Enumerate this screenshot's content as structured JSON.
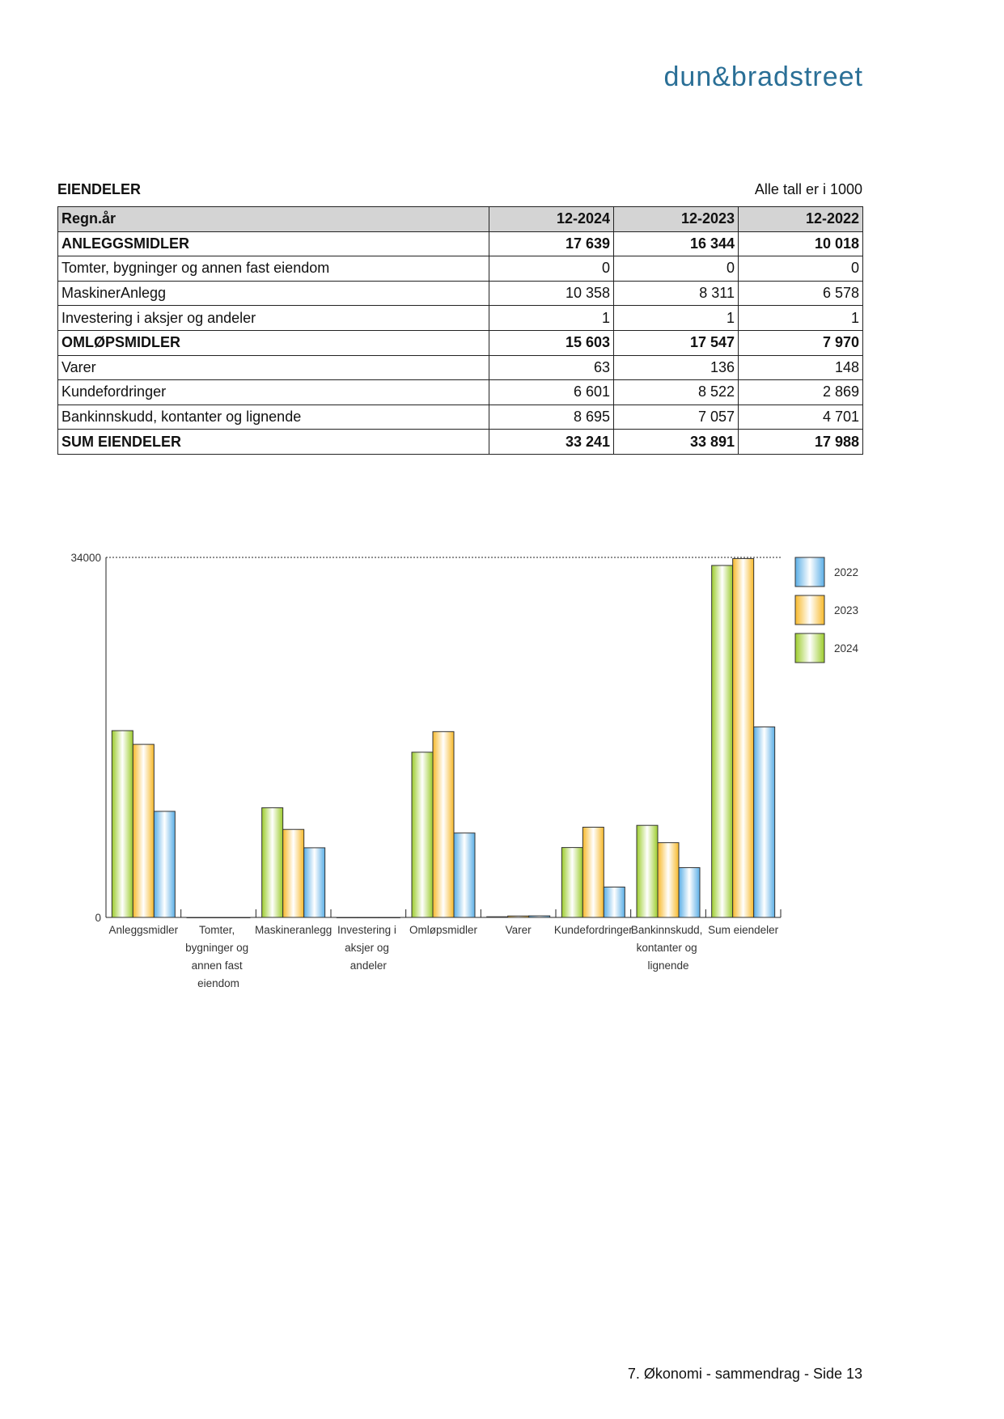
{
  "header": {
    "logo": "dun&bradstreet",
    "title": "EIENDELER",
    "note": "Alle tall er i 1000"
  },
  "table": {
    "rows": [
      {
        "bold": true,
        "cells": [
          "Regn.år",
          "12-2024",
          "12-2023",
          "12-2022"
        ]
      },
      {
        "bold": true,
        "cells": [
          "ANLEGGSMIDLER",
          "17 639",
          "16 344",
          "10 018"
        ]
      },
      {
        "bold": false,
        "cells": [
          "Tomter, bygninger og annen fast eiendom",
          "0",
          "0",
          "0"
        ]
      },
      {
        "bold": false,
        "cells": [
          "MaskinerAnlegg",
          "10 358",
          "8 311",
          "6 578"
        ]
      },
      {
        "bold": false,
        "cells": [
          "Investering i aksjer og andeler",
          "1",
          "1",
          "1"
        ]
      },
      {
        "bold": true,
        "cells": [
          "OMLØPSMIDLER",
          "15 603",
          "17 547",
          "7 970"
        ]
      },
      {
        "bold": false,
        "cells": [
          "Varer",
          "63",
          "136",
          "148"
        ]
      },
      {
        "bold": false,
        "cells": [
          "Kundefordringer",
          "6 601",
          "8 522",
          "2 869"
        ]
      },
      {
        "bold": false,
        "cells": [
          "Bankinnskudd, kontanter og lignende",
          "8 695",
          "7 057",
          "4 701"
        ]
      },
      {
        "bold": true,
        "cells": [
          "SUM EIENDELER",
          "33 241",
          "33 891",
          "17 988"
        ]
      }
    ]
  },
  "chart_data": {
    "type": "bar",
    "categories": [
      "Anleggsmidler",
      "Tomter, bygninger og annen fast eiendom",
      "Maskineranlegg",
      "Investering i aksjer og andeler",
      "Omløpsmidler",
      "Varer",
      "Kundefordringer",
      "Bankinnskudd, kontanter og lignende",
      "Sum eiendeler"
    ],
    "series": [
      {
        "name": "2024",
        "color": "#9ccc2c",
        "values": [
          17639,
          0,
          10358,
          1,
          15603,
          63,
          6601,
          8695,
          33241
        ]
      },
      {
        "name": "2023",
        "color": "#f7b92a",
        "values": [
          16344,
          0,
          8311,
          1,
          17547,
          136,
          8522,
          7057,
          33891
        ]
      },
      {
        "name": "2022",
        "color": "#5aaee6",
        "values": [
          10018,
          0,
          6578,
          1,
          7970,
          148,
          2869,
          4701,
          17988
        ]
      }
    ],
    "ylim": [
      0,
      34000
    ],
    "yticks": [
      0,
      34000
    ],
    "grid": true,
    "legend": "right"
  },
  "footer": {
    "text": "7. Økonomi - sammendrag - Side 13"
  }
}
